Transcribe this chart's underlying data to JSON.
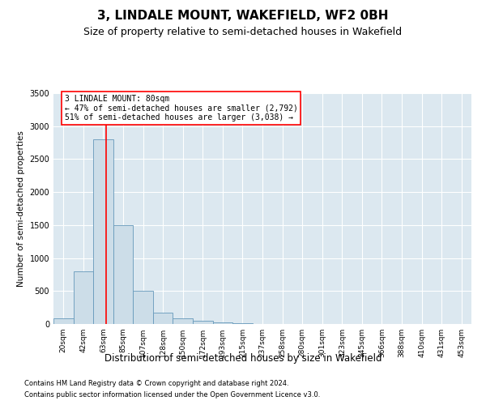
{
  "title": "3, LINDALE MOUNT, WAKEFIELD, WF2 0BH",
  "subtitle": "Size of property relative to semi-detached houses in Wakefield",
  "xlabel": "Distribution of semi-detached houses by size in Wakefield",
  "ylabel": "Number of semi-detached properties",
  "footer_line1": "Contains HM Land Registry data © Crown copyright and database right 2024.",
  "footer_line2": "Contains public sector information licensed under the Open Government Licence v3.0.",
  "categories": [
    "20sqm",
    "42sqm",
    "63sqm",
    "85sqm",
    "107sqm",
    "128sqm",
    "150sqm",
    "172sqm",
    "193sqm",
    "215sqm",
    "237sqm",
    "258sqm",
    "280sqm",
    "301sqm",
    "323sqm",
    "345sqm",
    "366sqm",
    "388sqm",
    "410sqm",
    "431sqm",
    "453sqm"
  ],
  "values": [
    80,
    800,
    2800,
    1500,
    500,
    175,
    90,
    50,
    30,
    10,
    5,
    2,
    1,
    0,
    0,
    0,
    0,
    0,
    0,
    0,
    0
  ],
  "bar_color": "#ccdde8",
  "bar_edge_color": "#6699bb",
  "red_line_bar_index": 2,
  "annotation_line1": "3 LINDALE MOUNT: 80sqm",
  "annotation_line2": "← 47% of semi-detached houses are smaller (2,792)",
  "annotation_line3": "51% of semi-detached houses are larger (3,038) →",
  "ylim_max": 3500,
  "yticks": [
    0,
    500,
    1000,
    1500,
    2000,
    2500,
    3000,
    3500
  ],
  "plot_bg_color": "#dce8f0",
  "title_fontsize": 11,
  "subtitle_fontsize": 9,
  "footer_fontsize": 6,
  "annot_fontsize": 7,
  "ylabel_fontsize": 7.5,
  "xlabel_fontsize": 8.5,
  "tick_fontsize": 6.5
}
